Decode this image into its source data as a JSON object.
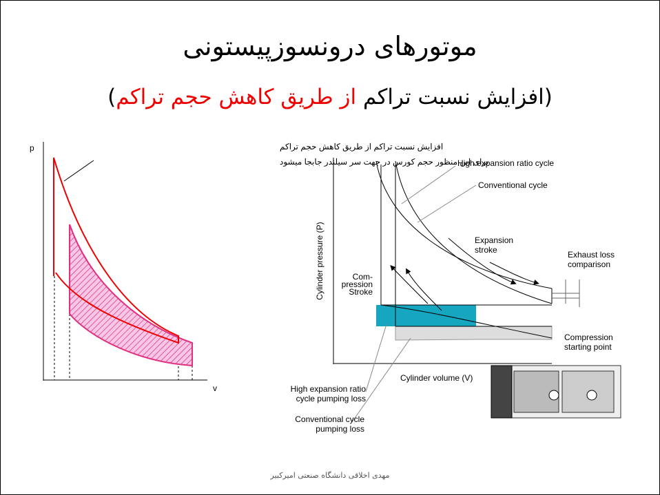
{
  "title": "موتورهای درونسوزپیستونی",
  "subtitle": {
    "prefix": "(افزایش نسبت تراکم",
    "highlight": "از طریق کاهش حجم تراکم",
    "suffix": ")"
  },
  "left_diagram": {
    "y_axis": "p",
    "x_axis": "v",
    "annotation": [
      "افزایش نسبت تراکم از طریق کاهش حجم تراکم",
      "برای این منظور حجم کورس در جهت سر سیلندر جابجا میشود"
    ]
  },
  "right_diagram": {
    "y_axis": "Cylinder pressure (P)",
    "x_axis": "Cylinder volume (V)",
    "labels": {
      "high_expansion": [
        "High expansion ratio cycle"
      ],
      "conventional": [
        "Conventional cycle"
      ],
      "expansion": [
        "Expansion",
        "stroke"
      ],
      "exhaust": [
        "Exhaust loss",
        "comparison"
      ],
      "compression": [
        "Com-",
        "pression",
        "Stroke"
      ],
      "starting_point": [
        "Compression",
        "starting point"
      ],
      "high_pumping": [
        "High expansion ratio",
        "cycle pumping loss"
      ],
      "conv_pumping": [
        "Conventional cycle",
        "pumping loss"
      ]
    }
  },
  "footer": "مهدی اخلاقی دانشگاه صنعتی امیرکبیر"
}
